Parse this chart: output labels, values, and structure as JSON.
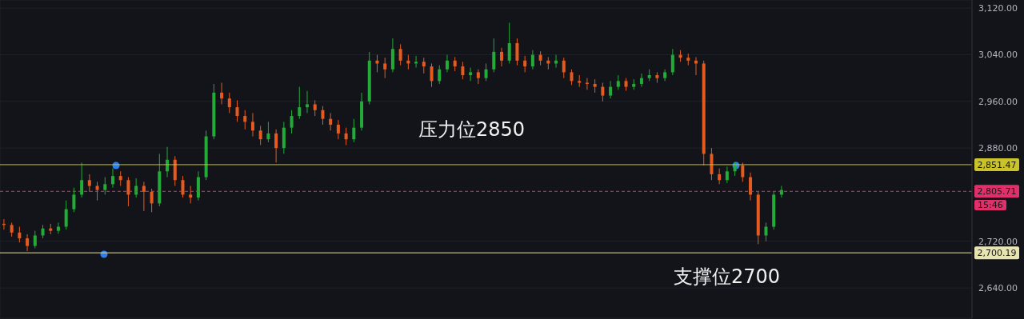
{
  "chart_data": {
    "type": "candlestick",
    "categories": [
      null,
      null,
      null,
      null,
      null,
      null,
      null,
      null,
      null,
      null,
      null,
      null,
      null,
      null,
      null,
      null,
      null,
      null,
      null,
      null,
      null,
      null,
      null,
      null,
      null,
      null,
      null,
      null,
      null,
      null,
      null,
      null,
      null,
      null,
      null,
      null,
      null,
      null,
      null,
      null,
      null,
      null,
      null,
      null,
      null,
      null,
      null,
      null,
      null,
      null,
      null,
      null,
      null,
      null,
      null,
      null,
      null,
      null,
      null,
      null,
      null,
      null,
      null,
      null,
      null,
      null,
      null,
      null,
      null,
      null,
      null,
      null,
      null,
      null,
      null,
      null,
      null,
      null,
      null,
      null,
      null,
      null,
      null,
      null,
      null,
      null,
      null,
      null,
      null,
      null,
      null,
      null,
      null,
      null,
      null,
      null,
      null,
      null,
      null,
      null,
      null,
      null,
      null,
      null,
      null,
      null,
      null,
      null,
      null,
      null,
      null,
      null,
      null,
      null,
      null,
      null,
      null,
      null,
      null,
      null,
      null,
      null,
      null,
      null,
      null
    ],
    "ohlc": [
      [
        2750,
        2758,
        2740,
        2748
      ],
      [
        2748,
        2752,
        2728,
        2735
      ],
      [
        2735,
        2745,
        2718,
        2725
      ],
      [
        2725,
        2732,
        2703,
        2712
      ],
      [
        2712,
        2738,
        2708,
        2730
      ],
      [
        2730,
        2748,
        2725,
        2742
      ],
      [
        2742,
        2750,
        2732,
        2738
      ],
      [
        2738,
        2752,
        2733,
        2745
      ],
      [
        2745,
        2790,
        2740,
        2775
      ],
      [
        2775,
        2812,
        2770,
        2800
      ],
      [
        2800,
        2855,
        2795,
        2825
      ],
      [
        2825,
        2835,
        2805,
        2815
      ],
      [
        2815,
        2822,
        2790,
        2808
      ],
      [
        2808,
        2830,
        2800,
        2818
      ],
      [
        2818,
        2845,
        2812,
        2832
      ],
      [
        2832,
        2840,
        2815,
        2825
      ],
      [
        2825,
        2830,
        2780,
        2800
      ],
      [
        2800,
        2828,
        2795,
        2815
      ],
      [
        2815,
        2822,
        2772,
        2805
      ],
      [
        2805,
        2810,
        2770,
        2785
      ],
      [
        2785,
        2870,
        2780,
        2840
      ],
      [
        2840,
        2882,
        2830,
        2860
      ],
      [
        2860,
        2866,
        2815,
        2825
      ],
      [
        2825,
        2832,
        2795,
        2800
      ],
      [
        2800,
        2815,
        2785,
        2795
      ],
      [
        2795,
        2840,
        2790,
        2830
      ],
      [
        2830,
        2910,
        2825,
        2900
      ],
      [
        2900,
        2990,
        2895,
        2975
      ],
      [
        2975,
        2992,
        2955,
        2965
      ],
      [
        2965,
        2975,
        2940,
        2950
      ],
      [
        2950,
        2962,
        2925,
        2935
      ],
      [
        2935,
        2945,
        2912,
        2925
      ],
      [
        2925,
        2940,
        2900,
        2910
      ],
      [
        2910,
        2918,
        2885,
        2895
      ],
      [
        2895,
        2925,
        2890,
        2905
      ],
      [
        2905,
        2912,
        2855,
        2880
      ],
      [
        2880,
        2925,
        2870,
        2915
      ],
      [
        2915,
        2945,
        2905,
        2935
      ],
      [
        2935,
        2985,
        2930,
        2950
      ],
      [
        2950,
        2978,
        2940,
        2955
      ],
      [
        2955,
        2962,
        2935,
        2945
      ],
      [
        2945,
        2952,
        2920,
        2930
      ],
      [
        2930,
        2940,
        2910,
        2920
      ],
      [
        2920,
        2928,
        2895,
        2905
      ],
      [
        2905,
        2915,
        2885,
        2895
      ],
      [
        2895,
        2930,
        2890,
        2915
      ],
      [
        2915,
        2975,
        2910,
        2960
      ],
      [
        2960,
        3045,
        2955,
        3030
      ],
      [
        3030,
        3040,
        3010,
        3025
      ],
      [
        3025,
        3035,
        3000,
        3015
      ],
      [
        3015,
        3068,
        3010,
        3050
      ],
      [
        3050,
        3058,
        3022,
        3030
      ],
      [
        3030,
        3040,
        3015,
        3025
      ],
      [
        3025,
        3038,
        3018,
        3028
      ],
      [
        3028,
        3035,
        3008,
        3020
      ],
      [
        3020,
        3025,
        2985,
        2995
      ],
      [
        2995,
        3022,
        2990,
        3015
      ],
      [
        3015,
        3040,
        3010,
        3030
      ],
      [
        3030,
        3036,
        3012,
        3020
      ],
      [
        3020,
        3028,
        2998,
        3005
      ],
      [
        3005,
        3018,
        2995,
        3010
      ],
      [
        3010,
        3015,
        2990,
        3000
      ],
      [
        3000,
        3025,
        2995,
        3015
      ],
      [
        3015,
        3068,
        3010,
        3045
      ],
      [
        3045,
        3052,
        3020,
        3030
      ],
      [
        3030,
        3095,
        3025,
        3060
      ],
      [
        3060,
        3068,
        3022,
        3030
      ],
      [
        3030,
        3038,
        3010,
        3020
      ],
      [
        3020,
        3048,
        3015,
        3040
      ],
      [
        3040,
        3046,
        3022,
        3030
      ],
      [
        3030,
        3036,
        3015,
        3025
      ],
      [
        3025,
        3040,
        3018,
        3030
      ],
      [
        3030,
        3035,
        3000,
        3010
      ],
      [
        3010,
        3015,
        2988,
        2995
      ],
      [
        2995,
        3005,
        2985,
        2992
      ],
      [
        2992,
        3000,
        2980,
        2990
      ],
      [
        2990,
        2998,
        2975,
        2985
      ],
      [
        2985,
        2992,
        2960,
        2970
      ],
      [
        2970,
        2995,
        2965,
        2985
      ],
      [
        2985,
        3005,
        2980,
        2995
      ],
      [
        2995,
        3000,
        2978,
        2985
      ],
      [
        2985,
        2998,
        2980,
        2990
      ],
      [
        2990,
        3008,
        2985,
        3000
      ],
      [
        3000,
        3015,
        2995,
        3005
      ],
      [
        3005,
        3010,
        2992,
        3000
      ],
      [
        3000,
        3015,
        2995,
        3010
      ],
      [
        3010,
        3050,
        3005,
        3040
      ],
      [
        3040,
        3048,
        3028,
        3035
      ],
      [
        3035,
        3042,
        3022,
        3030
      ],
      [
        3030,
        3036,
        3005,
        3025
      ],
      [
        3025,
        3030,
        2850,
        2870
      ],
      [
        2870,
        2880,
        2825,
        2835
      ],
      [
        2835,
        2845,
        2818,
        2825
      ],
      [
        2825,
        2848,
        2820,
        2840
      ],
      [
        2840,
        2856,
        2832,
        2850
      ],
      [
        2850,
        2855,
        2822,
        2830
      ],
      [
        2830,
        2838,
        2790,
        2800
      ],
      [
        2800,
        2805,
        2715,
        2730
      ],
      [
        2730,
        2752,
        2720,
        2745
      ],
      [
        2745,
        2805,
        2740,
        2800
      ],
      [
        2800,
        2815,
        2795,
        2808
      ],
      null,
      null,
      null,
      null,
      null,
      null,
      null,
      null,
      null,
      null,
      null,
      null,
      null,
      null,
      null,
      null,
      null,
      null,
      null,
      null,
      null,
      null,
      null,
      null
    ],
    "colors": [
      "#e55b1f",
      "#e55b1f",
      "#e55b1f",
      "#e55b1f",
      "#22ab36",
      "#22ab36",
      "#e55b1f",
      "#22ab36",
      "#22ab36",
      "#22ab36",
      "#22ab36",
      "#e55b1f",
      "#e55b1f",
      "#22ab36",
      "#22ab36",
      "#e55b1f",
      "#e55b1f",
      "#22ab36",
      "#e55b1f",
      "#e55b1f",
      "#22ab36",
      "#22ab36",
      "#e55b1f",
      "#e55b1f",
      "#e55b1f",
      "#22ab36",
      "#22ab36",
      "#22ab36",
      "#e55b1f",
      "#e55b1f",
      "#e55b1f",
      "#e55b1f",
      "#e55b1f",
      "#e55b1f",
      "#22ab36",
      "#e55b1f",
      "#22ab36",
      "#22ab36",
      "#22ab36",
      "#22ab36",
      "#e55b1f",
      "#e55b1f",
      "#e55b1f",
      "#e55b1f",
      "#e55b1f",
      "#22ab36",
      "#22ab36",
      "#22ab36",
      "#e55b1f",
      "#e55b1f",
      "#22ab36",
      "#e55b1f",
      "#e55b1f",
      "#22ab36",
      "#e55b1f",
      "#e55b1f",
      "#22ab36",
      "#22ab36",
      "#e55b1f",
      "#e55b1f",
      "#22ab36",
      "#e55b1f",
      "#22ab36",
      "#22ab36",
      "#e55b1f",
      "#22ab36",
      "#e55b1f",
      "#e55b1f",
      "#22ab36",
      "#e55b1f",
      "#e55b1f",
      "#22ab36",
      "#e55b1f",
      "#e55b1f",
      "#e55b1f",
      "#e55b1f",
      "#e55b1f",
      "#e55b1f",
      "#22ab36",
      "#22ab36",
      "#e55b1f",
      "#22ab36",
      "#22ab36",
      "#22ab36",
      "#e55b1f",
      "#22ab36",
      "#22ab36",
      "#e55b1f",
      "#e55b1f",
      "#e55b1f",
      "#e55b1f",
      "#e55b1f",
      "#e55b1f",
      "#22ab36",
      "#22ab36",
      "#e55b1f",
      "#e55b1f",
      "#e55b1f",
      "#22ab36",
      "#22ab36",
      "#22ab36",
      null,
      null,
      null,
      null,
      null,
      null,
      null,
      null,
      null,
      null,
      null,
      null,
      null,
      null,
      null,
      null,
      null,
      null,
      null,
      null,
      null,
      null,
      null,
      null
    ],
    "ylim": [
      2588,
      3134
    ],
    "yticks": [
      {
        "value": 2640,
        "label": "2,640.00"
      },
      {
        "value": 2720,
        "label": "2,720.00"
      },
      {
        "value": 2880,
        "label": "2,880.00"
      },
      {
        "value": 2960,
        "label": "2,960.00"
      },
      {
        "value": 3040,
        "label": "3,040.00"
      },
      {
        "value": 3120,
        "label": "3,120.00"
      }
    ],
    "tick_labels": "y",
    "grid": true,
    "ref_lines": [
      {
        "axis": "y",
        "value": 2851.47,
        "label": "2,851.47",
        "color": "#c9c22a",
        "line_style": "solid"
      },
      {
        "axis": "y",
        "value": 2805.71,
        "label": "2,805.71",
        "color": "#e0306a",
        "line_style": "dashed"
      },
      {
        "axis": "y",
        "value": 2700.19,
        "label": "2,700.19",
        "color": "#e8e4b0",
        "line_style": "solid"
      }
    ],
    "annotations": [
      "压力位2850",
      "支撑位2700",
      "15:46"
    ]
  }
}
